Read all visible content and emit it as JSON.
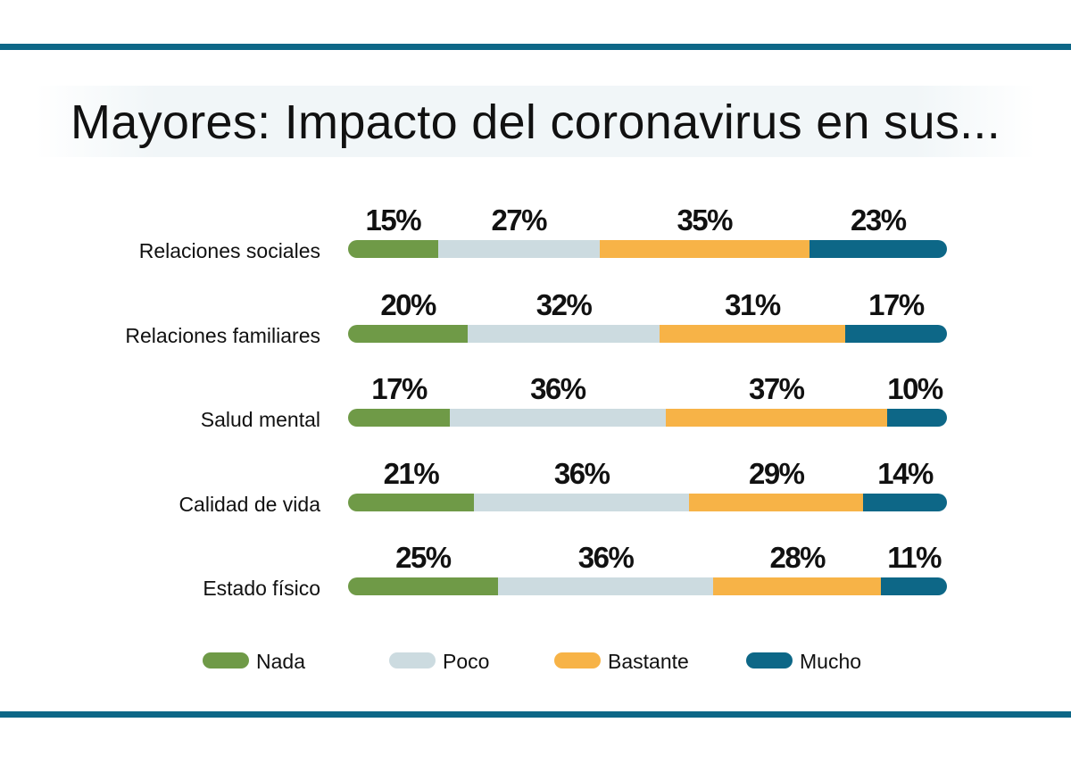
{
  "chart_data": {
    "type": "bar",
    "orientation": "horizontal",
    "stacked": true,
    "percent": true,
    "title": "Mayores: Impacto del coronavirus en sus...",
    "categories": [
      "Relaciones sociales",
      "Relaciones familiares",
      "Salud mental",
      "Calidad de vida",
      "Estado físico"
    ],
    "series": [
      {
        "name": "Nada",
        "color": "#6f9a47",
        "values": [
          15,
          20,
          17,
          21,
          25
        ]
      },
      {
        "name": "Poco",
        "color": "#ccdbe0",
        "values": [
          27,
          32,
          36,
          36,
          36
        ]
      },
      {
        "name": "Bastante",
        "color": "#f7b347",
        "values": [
          35,
          31,
          37,
          29,
          28
        ]
      },
      {
        "name": "Mucho",
        "color": "#0d6787",
        "values": [
          23,
          17,
          10,
          14,
          11
        ]
      }
    ],
    "value_suffix": "%",
    "legend_position": "bottom",
    "xlim": [
      0,
      100
    ],
    "grid": false
  }
}
